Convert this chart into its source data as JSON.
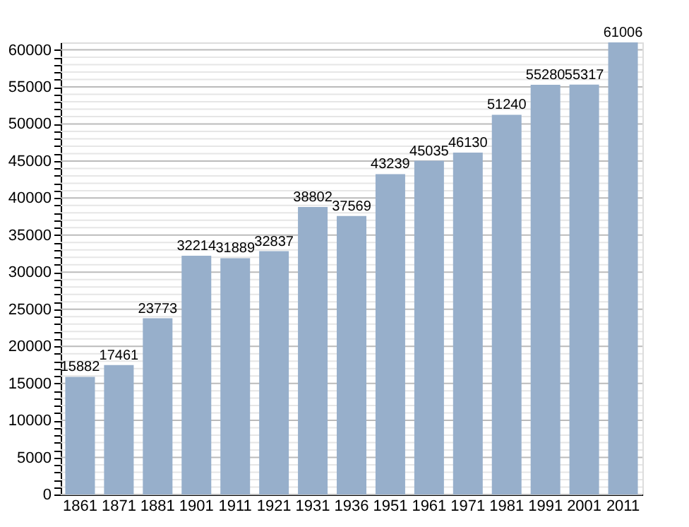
{
  "chart_data": {
    "type": "bar",
    "categories": [
      "1861",
      "1871",
      "1881",
      "1901",
      "1911",
      "1921",
      "1931",
      "1936",
      "1951",
      "1961",
      "1971",
      "1981",
      "1991",
      "2001",
      "2011"
    ],
    "values": [
      15882,
      17461,
      23773,
      32214,
      31889,
      32837,
      38802,
      37569,
      43239,
      45035,
      46130,
      51240,
      55280,
      55317,
      61006
    ],
    "color": "#97afcb",
    "ylim": [
      0,
      61006
    ],
    "yticks": [
      0,
      {
        "value": 1000,
        "label": null
      },
      {
        "value": 2000,
        "label": null
      },
      {
        "value": 3000,
        "label": null
      },
      {
        "value": 4000,
        "label": null
      },
      5000,
      {
        "value": 6000,
        "label": null
      },
      {
        "value": 7000,
        "label": null
      },
      {
        "value": 8000,
        "label": null
      },
      {
        "value": 9000,
        "label": null
      },
      10000,
      {
        "value": 11000,
        "label": null
      },
      {
        "value": 12000,
        "label": null
      },
      {
        "value": 13000,
        "label": null
      },
      {
        "value": 14000,
        "label": null
      },
      15000,
      {
        "value": 16000,
        "label": null
      },
      {
        "value": 17000,
        "label": null
      },
      {
        "value": 18000,
        "label": null
      },
      {
        "value": 19000,
        "label": null
      },
      20000,
      {
        "value": 21000,
        "label": null
      },
      {
        "value": 22000,
        "label": null
      },
      {
        "value": 23000,
        "label": null
      },
      {
        "value": 24000,
        "label": null
      },
      25000,
      {
        "value": 26000,
        "label": null
      },
      {
        "value": 27000,
        "label": null
      },
      {
        "value": 28000,
        "label": null
      },
      {
        "value": 29000,
        "label": null
      },
      30000,
      {
        "value": 31000,
        "label": null
      },
      {
        "value": 32000,
        "label": null
      },
      {
        "value": 33000,
        "label": null
      },
      {
        "value": 34000,
        "label": null
      },
      35000,
      {
        "value": 36000,
        "label": null
      },
      {
        "value": 37000,
        "label": null
      },
      {
        "value": 38000,
        "label": null
      },
      {
        "value": 39000,
        "label": null
      },
      40000,
      {
        "value": 41000,
        "label": null
      },
      {
        "value": 42000,
        "label": null
      },
      {
        "value": 43000,
        "label": null
      },
      {
        "value": 44000,
        "label": null
      },
      45000,
      {
        "value": 46000,
        "label": null
      },
      {
        "value": 47000,
        "label": null
      },
      {
        "value": 48000,
        "label": null
      },
      {
        "value": 49000,
        "label": null
      },
      50000,
      {
        "value": 51000,
        "label": null
      },
      {
        "value": 52000,
        "label": null
      },
      {
        "value": 53000,
        "label": null
      },
      {
        "value": 54000,
        "label": null
      },
      55000,
      {
        "value": 56000,
        "label": null
      },
      {
        "value": 57000,
        "label": null
      },
      {
        "value": 58000,
        "label": null
      },
      {
        "value": 59000,
        "label": null
      },
      60000
    ],
    "grid": "y",
    "data_labels": true
  }
}
